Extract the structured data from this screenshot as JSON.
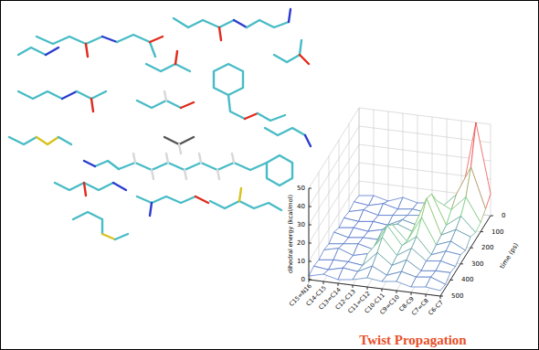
{
  "chart_data": {
    "type": "surface",
    "title": "Twist Propagation",
    "categories": [
      "C15=N16",
      "C14-C15",
      "C13=C14",
      "C12-C13",
      "C11=C12",
      "C10-C11",
      "C9=C10",
      "C8-C9",
      "C7=C8",
      "C6-C7"
    ],
    "y": [
      0,
      50,
      100,
      150,
      200,
      250,
      300,
      350,
      400,
      450,
      500
    ],
    "ylabel": "time (ps)",
    "ylim": [
      0,
      500
    ],
    "yticks": [
      0,
      100,
      200,
      300,
      400,
      500
    ],
    "zlabel": "dihedral energy (kcal/mol)",
    "zlim": [
      0,
      50
    ],
    "zticks": [
      0,
      10,
      20,
      30,
      40,
      50
    ],
    "values": [
      [
        2,
        3,
        1,
        4,
        2,
        3,
        2,
        8,
        50,
        12
      ],
      [
        3,
        2,
        4,
        2,
        3,
        2,
        6,
        14,
        30,
        8
      ],
      [
        2,
        4,
        2,
        3,
        4,
        5,
        14,
        10,
        18,
        5
      ],
      [
        3,
        2,
        3,
        2,
        6,
        4,
        22,
        6,
        12,
        4
      ],
      [
        2,
        3,
        2,
        4,
        8,
        5,
        24,
        5,
        9,
        6
      ],
      [
        4,
        2,
        3,
        3,
        12,
        4,
        18,
        4,
        7,
        3
      ],
      [
        2,
        3,
        4,
        2,
        16,
        6,
        12,
        3,
        6,
        5
      ],
      [
        3,
        5,
        2,
        4,
        14,
        5,
        10,
        4,
        5,
        3
      ],
      [
        2,
        3,
        3,
        2,
        10,
        4,
        8,
        3,
        4,
        4
      ],
      [
        3,
        2,
        4,
        3,
        7,
        3,
        6,
        4,
        5,
        2
      ],
      [
        2,
        4,
        2,
        3,
        5,
        4,
        5,
        3,
        4,
        3
      ]
    ],
    "grid": true
  }
}
